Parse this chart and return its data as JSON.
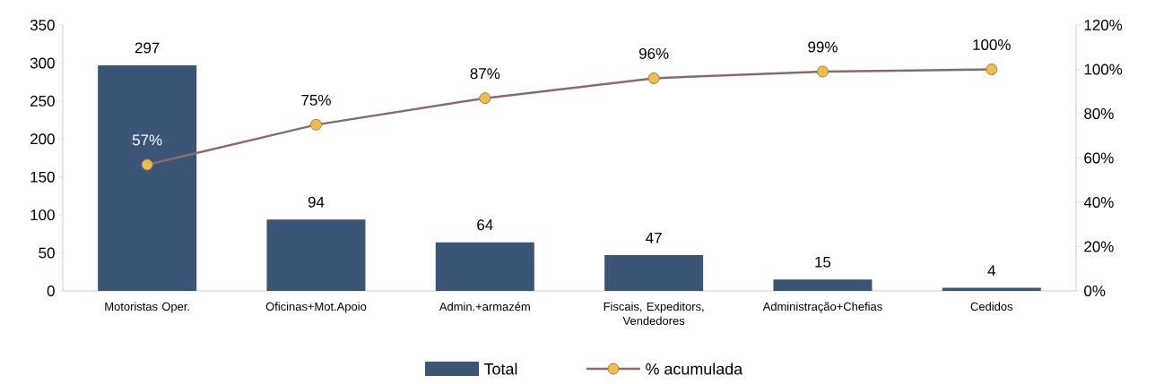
{
  "chart_data": {
    "type": "bar",
    "categories": [
      "Motoristas Oper.",
      "Oficinas+Mot.Apoio",
      "Admin.+armazém",
      "Fiscais, Expeditors, Vendedores",
      "Administração+Chefias",
      "Cedidos"
    ],
    "series": [
      {
        "name": "Total",
        "color": "#3b5577",
        "values": [
          297,
          94,
          64,
          47,
          15,
          4
        ],
        "value_labels": [
          "297",
          "94",
          "64",
          "47",
          "15",
          "4"
        ]
      },
      {
        "name": "% acumulada",
        "type": "line",
        "axis": "y2",
        "color": "#8b6b66",
        "colors": [
          "#f5bd3c",
          "#f5bd3c",
          "#f5bd3c",
          "#f5bd3c",
          "#f5bd3c",
          "#f5bd3c"
        ],
        "marker": "circle",
        "values": [
          57,
          75,
          87,
          96,
          99,
          100
        ],
        "value_labels": [
          "57%",
          "75%",
          "87%",
          "96%",
          "99%",
          "100%"
        ]
      }
    ],
    "ylim": [
      0,
      350
    ],
    "yticks": [
      0,
      50,
      100,
      150,
      200,
      250,
      300,
      350
    ],
    "y2lim": [
      0,
      120
    ],
    "y2ticks": [
      {
        "value": 0,
        "label": "0%"
      },
      {
        "value": 20,
        "label": "20%"
      },
      {
        "value": 40,
        "label": "40%"
      },
      {
        "value": 60,
        "label": "60%"
      },
      {
        "value": 80,
        "label": "80%"
      },
      {
        "value": 100,
        "label": "100%"
      },
      {
        "value": 120,
        "label": "120%"
      }
    ],
    "grid": false,
    "legend": "bottom"
  }
}
